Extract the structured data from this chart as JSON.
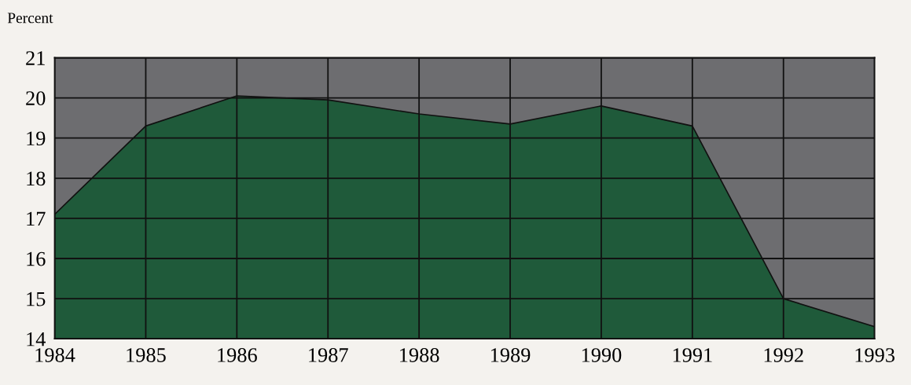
{
  "chart_data": {
    "type": "area",
    "ylabel": "Percent",
    "x": [
      1984,
      1985,
      1986,
      1987,
      1988,
      1989,
      1990,
      1991,
      1992,
      1993
    ],
    "series": [
      {
        "color": "#1f5a3a",
        "values": [
          17.1,
          19.3,
          20.05,
          19.95,
          19.6,
          19.35,
          19.8,
          19.3,
          15.0,
          14.3
        ]
      }
    ],
    "xlim": [
      1984,
      1993
    ],
    "xticks": [
      1984,
      1985,
      1986,
      1987,
      1988,
      1989,
      1990,
      1991,
      1992,
      1993
    ],
    "ylim": [
      14,
      21
    ],
    "yticks": [
      14,
      15,
      16,
      17,
      18,
      19,
      20,
      21
    ],
    "grid": true
  }
}
